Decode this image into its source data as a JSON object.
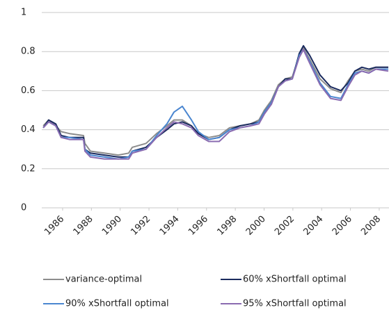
{
  "chart_data": {
    "type": "line",
    "x": [
      1984.65,
      1985.03,
      1985.52,
      1985.9,
      1986.48,
      1987.45,
      1987.55,
      1987.93,
      1988.9,
      1989.87,
      1990.59,
      1990.84,
      1991.8,
      1992.53,
      1993.25,
      1993.74,
      1994.32,
      1994.95,
      1995.43,
      1996.15,
      1996.88,
      1997.6,
      1998.33,
      1999.06,
      1999.64,
      2000.02,
      2000.51,
      2000.99,
      2001.47,
      2001.96,
      2002.44,
      2002.73,
      2003.17,
      2003.89,
      2004.62,
      2005.34,
      2005.83,
      2006.31,
      2006.79,
      2007.28,
      2007.76,
      2008.63
    ],
    "series": [
      {
        "name": "variance-optimal",
        "color": "#8c8c8c",
        "values": [
          0.42,
          0.45,
          0.42,
          0.39,
          0.38,
          0.37,
          0.33,
          0.29,
          0.28,
          0.27,
          0.28,
          0.31,
          0.33,
          0.38,
          0.42,
          0.45,
          0.45,
          0.42,
          0.38,
          0.36,
          0.37,
          0.41,
          0.42,
          0.43,
          0.45,
          0.5,
          0.55,
          0.63,
          0.66,
          0.67,
          0.78,
          0.82,
          0.76,
          0.66,
          0.61,
          0.59,
          0.65,
          0.7,
          0.71,
          0.7,
          0.72,
          0.72
        ]
      },
      {
        "name": "60% xShortfall optimal",
        "color": "#1a2a5e",
        "values": [
          0.41,
          0.45,
          0.43,
          0.37,
          0.36,
          0.36,
          0.3,
          0.28,
          0.27,
          0.26,
          0.26,
          0.29,
          0.31,
          0.36,
          0.4,
          0.43,
          0.44,
          0.42,
          0.38,
          0.35,
          0.36,
          0.4,
          0.42,
          0.43,
          0.44,
          0.49,
          0.54,
          0.62,
          0.66,
          0.66,
          0.79,
          0.83,
          0.78,
          0.68,
          0.62,
          0.6,
          0.64,
          0.7,
          0.72,
          0.71,
          0.72,
          0.72
        ]
      },
      {
        "name": "90% xShortfall optimal",
        "color": "#4a86d0",
        "values": [
          0.41,
          0.44,
          0.42,
          0.36,
          0.36,
          0.35,
          0.3,
          0.27,
          0.26,
          0.25,
          0.26,
          0.29,
          0.3,
          0.37,
          0.43,
          0.49,
          0.52,
          0.45,
          0.39,
          0.35,
          0.36,
          0.4,
          0.41,
          0.42,
          0.44,
          0.49,
          0.54,
          0.62,
          0.65,
          0.66,
          0.78,
          0.81,
          0.75,
          0.64,
          0.57,
          0.56,
          0.63,
          0.69,
          0.7,
          0.69,
          0.71,
          0.71
        ]
      },
      {
        "name": "95% xShortfall optimal",
        "color": "#8a6bb0",
        "values": [
          0.41,
          0.44,
          0.42,
          0.36,
          0.35,
          0.35,
          0.29,
          0.26,
          0.25,
          0.25,
          0.25,
          0.28,
          0.3,
          0.36,
          0.41,
          0.44,
          0.43,
          0.41,
          0.37,
          0.34,
          0.34,
          0.39,
          0.41,
          0.42,
          0.43,
          0.48,
          0.53,
          0.62,
          0.65,
          0.66,
          0.77,
          0.81,
          0.74,
          0.63,
          0.56,
          0.55,
          0.62,
          0.68,
          0.7,
          0.69,
          0.71,
          0.7
        ]
      }
    ],
    "xlim": [
      1984.55,
      2008.68
    ],
    "xticks": [
      1986,
      1988,
      1990,
      1992,
      1994,
      1996,
      1998,
      2000,
      2002,
      2004,
      2006,
      2008
    ],
    "ylim": [
      0,
      1
    ],
    "yticks": [
      0,
      0.2,
      0.4,
      0.6,
      0.8,
      1
    ],
    "grid": true
  }
}
